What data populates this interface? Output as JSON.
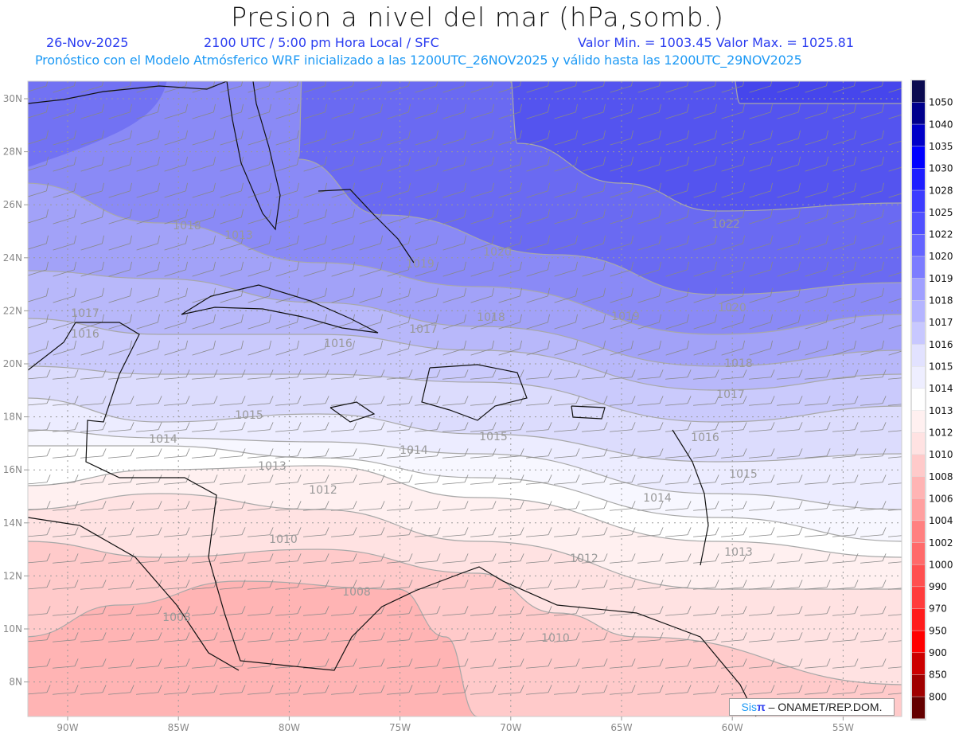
{
  "header": {
    "title": "Presion a nivel del mar (hPa,somb.)",
    "date": "26-Nov-2025",
    "time": "2100 UTC / 5:00 pm Hora Local / SFC",
    "min_max": "Valor Min. = 1003.45  Valor Max. = 1025.81",
    "forecast_note": "Pronóstico con el Modelo Atmósferico WRF inicializado a las 1200UTC_26NOV2025 y válido hasta las  1200UTC_29NOV2025"
  },
  "map": {
    "lon_labels": [
      "90W",
      "85W",
      "80W",
      "75W",
      "70W",
      "65W",
      "60W",
      "55W"
    ],
    "lat_labels": [
      "30N",
      "28N",
      "26N",
      "24N",
      "22N",
      "20N",
      "18N",
      "16N",
      "14N",
      "12N",
      "10N",
      "8N"
    ],
    "contour_labels": [
      "1018",
      "1020",
      "1022",
      "1020",
      "1017",
      "1016",
      "1019",
      "1017",
      "1016",
      "1018",
      "1019",
      "1018",
      "1017",
      "1015",
      "1014",
      "1015",
      "1016",
      "1013",
      "1012",
      "1014",
      "1015",
      "1010",
      "1012",
      "1013",
      "1008",
      "1008",
      "1010",
      "1014",
      "1013"
    ]
  },
  "colorbar": {
    "labels": [
      "1050",
      "1040",
      "1035",
      "1030",
      "1028",
      "1025",
      "1022",
      "1020",
      "1019",
      "1018",
      "1017",
      "1016",
      "1015",
      "1014",
      "1013",
      "1012",
      "1010",
      "1008",
      "1006",
      "1004",
      "1002",
      "1000",
      "990",
      "970",
      "950",
      "900",
      "850",
      "800"
    ],
    "colors": [
      "#0a0a50",
      "#00008c",
      "#0000c8",
      "#0000ff",
      "#1e1eff",
      "#3c3cff",
      "#5050ff",
      "#6464ff",
      "#7c7cff",
      "#a0a0ff",
      "#b4b4ff",
      "#c8c8ff",
      "#dcdcff",
      "#ececff",
      "#f6f6ff",
      "#ffffff",
      "#fff0f0",
      "#ffe2e2",
      "#ffcaca",
      "#ffb4b4",
      "#ff9e9e",
      "#ff8080",
      "#ff6464",
      "#ff5050",
      "#ff3838",
      "#ff1c1c",
      "#ff0000",
      "#cc0000",
      "#a00000",
      "#640000"
    ]
  },
  "credit": {
    "sis": "Sis",
    "pi": "π",
    "text": "– ONAMET/REP.DOM."
  }
}
